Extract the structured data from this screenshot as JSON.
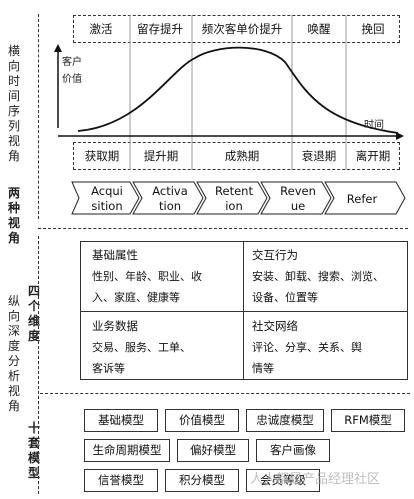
{
  "left_labels": {
    "horizontal_view": "横向时间序列视角",
    "two_views": "两种视角",
    "four_dims": "四个维度",
    "vertical_view": "纵向深度分析视角",
    "ten_models": "十套模型"
  },
  "top_phases": [
    "激活",
    "留存提升",
    "频次客单价提升",
    "唤醒",
    "挽回"
  ],
  "axis": {
    "y_label_1": "客户",
    "y_label_2": "价值",
    "x_label": "时间"
  },
  "stages": [
    "获取期",
    "提升期",
    "成熟期",
    "衰退期",
    "离开期"
  ],
  "chevrons": [
    {
      "line1": "Acqui",
      "line2": "sition"
    },
    {
      "line1": "Activa",
      "line2": "tion"
    },
    {
      "line1": "Retent",
      "line2": "ion"
    },
    {
      "line1": "Reven",
      "line2": "ue"
    },
    {
      "line1": "Refer",
      "line2": ""
    }
  ],
  "dimensions": {
    "basic": {
      "title": "基础属性",
      "line1": "性别、年龄、职业、收",
      "line2": "入、家庭、健康等"
    },
    "interaction": {
      "title": "交互行为",
      "line1": "安装、卸载、搜索、浏览、",
      "line2": "设备、位置等"
    },
    "business": {
      "title": "业务数据",
      "line1": "交易、服务、工单、",
      "line2": "客诉等"
    },
    "social": {
      "title": "社交网络",
      "line1": "评论、分享、关系、舆",
      "line2": "情等"
    }
  },
  "models": {
    "row1": [
      "基础模型",
      "价值模型",
      "忠诚度模型",
      "RFM模型"
    ],
    "row2": [
      "生命周期模型",
      "偏好模型",
      "客户画像"
    ],
    "row3": [
      "信誉模型",
      "积分模型",
      "会员等级"
    ]
  },
  "watermark": "人人都是产品经理社区"
}
